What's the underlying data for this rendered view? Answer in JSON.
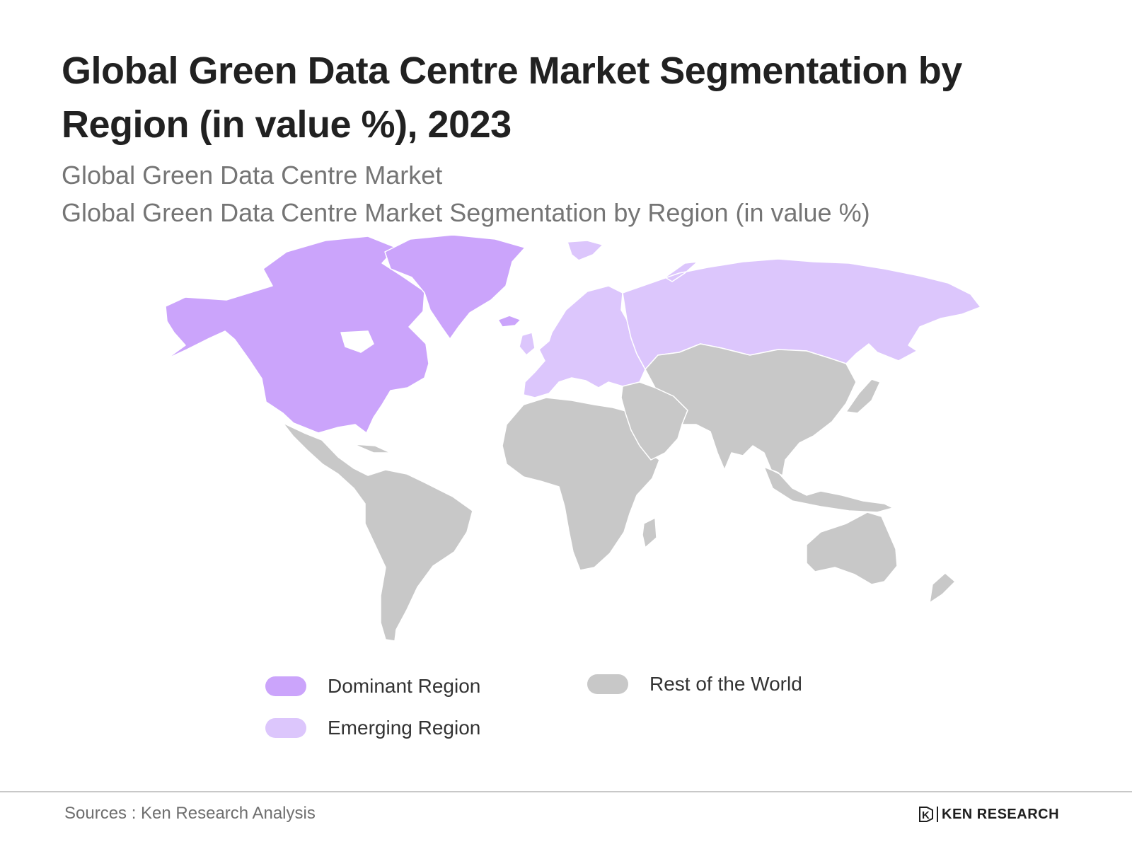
{
  "header": {
    "title": "Global Green Data Centre Market Segmentation by Region (in value %), 2023",
    "subtitle1": "Global Green Data Centre Market",
    "subtitle2": "Global Green Data Centre Market Segmentation by Region (in value %)"
  },
  "colors": {
    "dominant": "#cba4fb",
    "emerging": "#dcc6fc",
    "rest": "#c8c8c8",
    "border": "#ffffff"
  },
  "map": {
    "regions": [
      {
        "name": "North America",
        "category": "dominant"
      },
      {
        "name": "Greenland",
        "category": "dominant"
      },
      {
        "name": "Europe",
        "category": "emerging"
      },
      {
        "name": "Russia",
        "category": "emerging"
      },
      {
        "name": "Latin America",
        "category": "rest"
      },
      {
        "name": "Africa",
        "category": "rest"
      },
      {
        "name": "Middle East",
        "category": "rest"
      },
      {
        "name": "Asia",
        "category": "rest"
      },
      {
        "name": "Oceania",
        "category": "rest"
      }
    ]
  },
  "legend": {
    "dominant": "Dominant Region",
    "emerging": "Emerging Region",
    "rest": "Rest of the World"
  },
  "footer": {
    "source": "Sources : Ken Research Analysis",
    "brand": "KEN RESEARCH",
    "logo_letter": "K"
  }
}
